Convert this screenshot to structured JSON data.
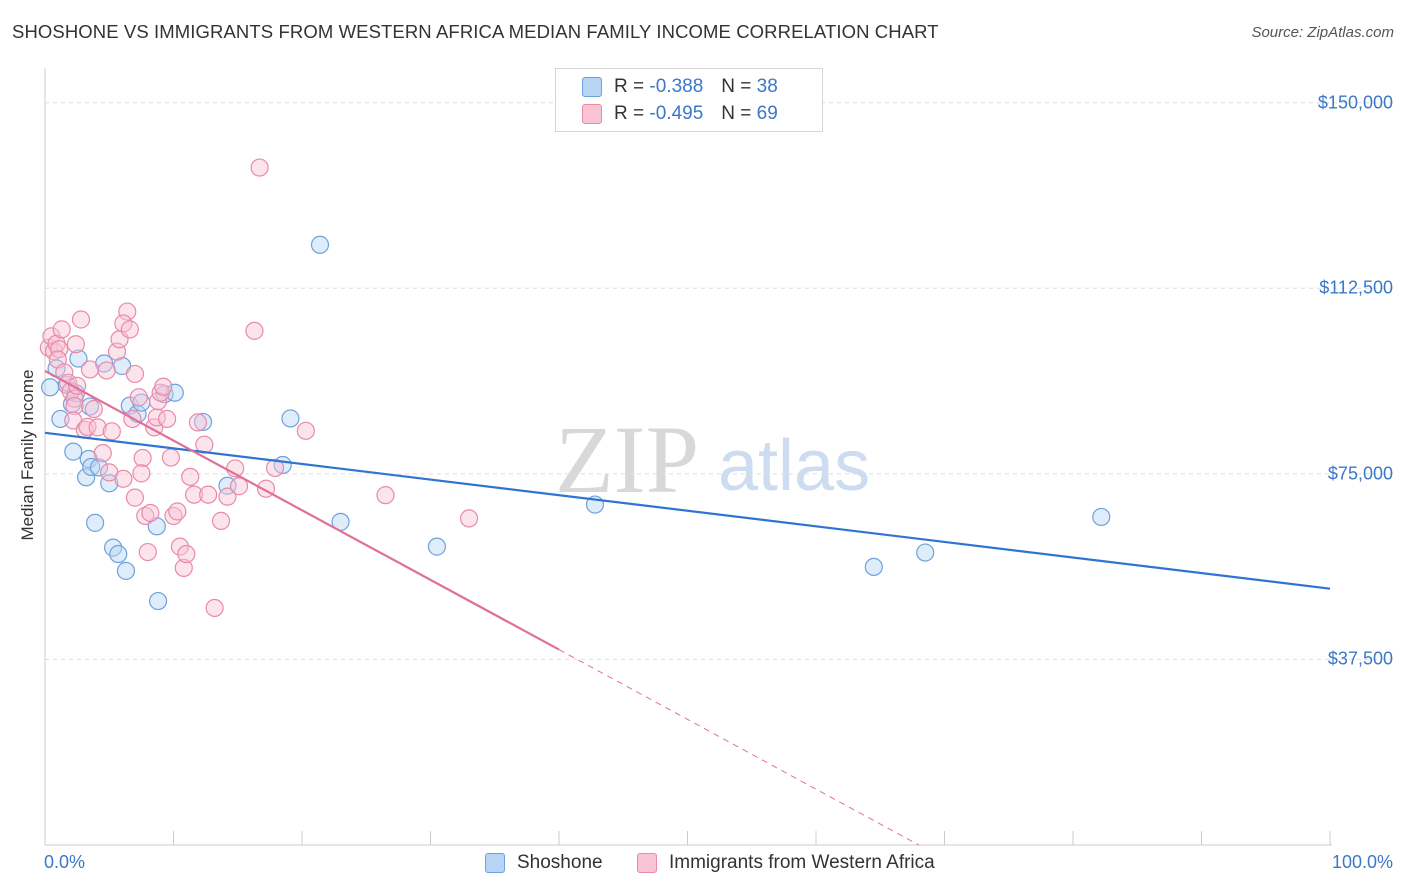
{
  "title": "SHOSHONE VS IMMIGRANTS FROM WESTERN AFRICA MEDIAN FAMILY INCOME CORRELATION CHART",
  "source": "Source: ZipAtlas.com",
  "watermark": {
    "zip": "ZIP",
    "atlas": "atlas"
  },
  "colors": {
    "blue_fill": "#b8d4f5",
    "blue_stroke": "#6fa1dc",
    "blue_line": "#2f74d0",
    "pink_fill": "#f8c4d4",
    "pink_stroke": "#e98aa9",
    "pink_line": "#e0709a",
    "axis_text": "#3b78c8",
    "grid": "#dddddd"
  },
  "legend": {
    "rows": [
      {
        "r_label": "R =",
        "r_value": "-0.388",
        "n_label": "N =",
        "n_value": "38",
        "series": "blue"
      },
      {
        "r_label": "R =",
        "r_value": "-0.495",
        "n_label": "N =",
        "n_value": "69",
        "series": "pink"
      }
    ]
  },
  "chart_data": {
    "type": "scatter",
    "title": "SHOSHONE VS IMMIGRANTS FROM WESTERN AFRICA MEDIAN FAMILY INCOME CORRELATION CHART",
    "xlabel": "",
    "ylabel": "Median Family Income",
    "xlim": [
      0,
      100
    ],
    "ylim": [
      0,
      155000
    ],
    "x_tick_labels": [
      "0.0%",
      "100.0%"
    ],
    "y_ticks": [
      37500,
      75000,
      112500,
      150000
    ],
    "y_tick_labels": [
      "$37,500",
      "$75,000",
      "$112,500",
      "$150,000"
    ],
    "grid": true,
    "legend_position": "bottom",
    "series": [
      {
        "name": "Shoshone",
        "color": "blue",
        "r": -0.388,
        "n": 38,
        "trend": {
          "x": [
            0,
            100
          ],
          "y": [
            83300,
            51800
          ]
        },
        "points": [
          [
            0.4,
            92500
          ],
          [
            0.9,
            96300
          ],
          [
            1.2,
            86100
          ],
          [
            1.7,
            93000
          ],
          [
            2.1,
            89100
          ],
          [
            2.4,
            91300
          ],
          [
            2.2,
            79500
          ],
          [
            2.6,
            98300
          ],
          [
            3.2,
            74300
          ],
          [
            3.5,
            88600
          ],
          [
            3.4,
            78000
          ],
          [
            3.6,
            76400
          ],
          [
            3.9,
            65100
          ],
          [
            4.2,
            76300
          ],
          [
            4.6,
            97300
          ],
          [
            5.0,
            73100
          ],
          [
            5.3,
            60100
          ],
          [
            5.7,
            58800
          ],
          [
            6.0,
            96800
          ],
          [
            6.3,
            55400
          ],
          [
            6.6,
            88800
          ],
          [
            7.2,
            87100
          ],
          [
            7.5,
            89400
          ],
          [
            8.8,
            49300
          ],
          [
            8.7,
            64400
          ],
          [
            9.3,
            91100
          ],
          [
            10.1,
            91400
          ],
          [
            12.3,
            85500
          ],
          [
            14.2,
            72600
          ],
          [
            18.5,
            76800
          ],
          [
            19.1,
            86200
          ],
          [
            21.4,
            121300
          ],
          [
            23.0,
            65300
          ],
          [
            30.5,
            60300
          ],
          [
            42.8,
            68800
          ],
          [
            64.5,
            56200
          ],
          [
            68.5,
            59100
          ],
          [
            82.2,
            66300
          ]
        ]
      },
      {
        "name": "Immigrants from Western Africa",
        "color": "pink",
        "r": -0.495,
        "n": 69,
        "trend": {
          "x": [
            0,
            40
          ],
          "y": [
            95800,
            39500
          ]
        },
        "trend_dashed": {
          "x": [
            40,
            68
          ],
          "y": [
            39500,
            0
          ]
        },
        "points": [
          [
            0.3,
            100500
          ],
          [
            0.5,
            102800
          ],
          [
            0.7,
            99800
          ],
          [
            0.9,
            101300
          ],
          [
            1.1,
            100200
          ],
          [
            1.0,
            98100
          ],
          [
            1.3,
            104200
          ],
          [
            1.5,
            95500
          ],
          [
            1.8,
            93400
          ],
          [
            2.0,
            91700
          ],
          [
            2.3,
            90200
          ],
          [
            2.5,
            92800
          ],
          [
            2.4,
            101200
          ],
          [
            2.3,
            88700
          ],
          [
            2.2,
            85800
          ],
          [
            2.8,
            106200
          ],
          [
            3.1,
            83900
          ],
          [
            3.3,
            84500
          ],
          [
            3.5,
            96100
          ],
          [
            3.8,
            88100
          ],
          [
            4.1,
            84400
          ],
          [
            4.5,
            79200
          ],
          [
            4.8,
            95900
          ],
          [
            5.0,
            75300
          ],
          [
            5.2,
            83600
          ],
          [
            5.6,
            99700
          ],
          [
            5.8,
            102200
          ],
          [
            6.1,
            74000
          ],
          [
            6.4,
            107800
          ],
          [
            6.1,
            105400
          ],
          [
            6.6,
            104200
          ],
          [
            6.8,
            86100
          ],
          [
            7.0,
            95200
          ],
          [
            7.3,
            90500
          ],
          [
            7.6,
            78200
          ],
          [
            7.5,
            75100
          ],
          [
            7.0,
            70200
          ],
          [
            7.8,
            66500
          ],
          [
            8.0,
            59200
          ],
          [
            8.2,
            67100
          ],
          [
            8.5,
            84400
          ],
          [
            8.7,
            86400
          ],
          [
            8.8,
            89700
          ],
          [
            9.0,
            91400
          ],
          [
            9.2,
            92600
          ],
          [
            9.5,
            86100
          ],
          [
            9.8,
            78300
          ],
          [
            10.0,
            66500
          ],
          [
            10.3,
            67400
          ],
          [
            10.5,
            60300
          ],
          [
            10.8,
            56000
          ],
          [
            11.0,
            58800
          ],
          [
            11.3,
            74400
          ],
          [
            11.6,
            70800
          ],
          [
            11.9,
            85400
          ],
          [
            12.4,
            80900
          ],
          [
            12.7,
            70800
          ],
          [
            13.2,
            47900
          ],
          [
            13.7,
            65500
          ],
          [
            14.2,
            70400
          ],
          [
            14.8,
            76100
          ],
          [
            15.1,
            72500
          ],
          [
            16.3,
            103900
          ],
          [
            16.7,
            136900
          ],
          [
            17.2,
            72000
          ],
          [
            17.9,
            76200
          ],
          [
            20.3,
            83700
          ],
          [
            26.5,
            70700
          ],
          [
            33.0,
            66000
          ]
        ]
      }
    ]
  },
  "bottom_legend": [
    "Shoshone",
    "Immigrants from Western Africa"
  ]
}
